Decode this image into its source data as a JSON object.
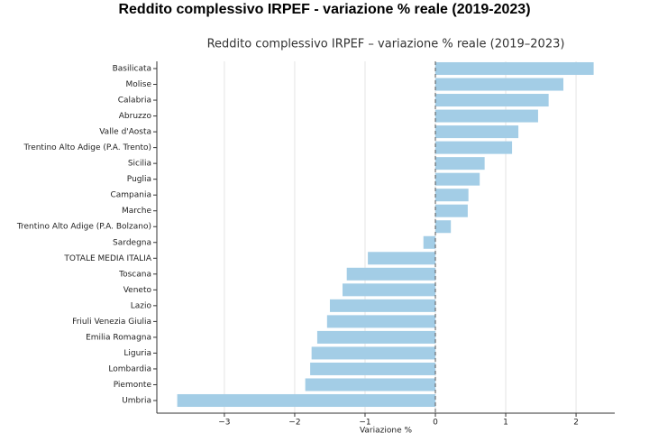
{
  "chart_data": {
    "type": "barh",
    "suptitle": "Reddito complessivo IRPEF - variazione % reale (2019-2023)",
    "title": "Reddito complessivo IRPEF – variazione % reale (2019–2023)",
    "x_label": "Variazione %",
    "categories": [
      "Basilicata",
      "Molise",
      "Calabria",
      "Abruzzo",
      "Valle d'Aosta",
      "Trentino Alto Adige (P.A. Trento)",
      "Sicilia",
      "Puglia",
      "Campania",
      "Marche",
      "Trentino Alto Adige (P.A. Bolzano)",
      "Sardegna",
      "TOTALE MEDIA ITALIA",
      "Toscana",
      "Veneto",
      "Lazio",
      "Friuli Venezia Giulia",
      "Emilia Romagna",
      "Liguria",
      "Lombardia",
      "Piemonte",
      "Umbria"
    ],
    "values": [
      2.25,
      1.82,
      1.61,
      1.46,
      1.18,
      1.09,
      0.7,
      0.63,
      0.47,
      0.46,
      0.22,
      -0.17,
      -0.96,
      -1.26,
      -1.32,
      -1.5,
      -1.54,
      -1.68,
      -1.76,
      -1.78,
      -1.85,
      -3.67
    ],
    "color": "#a3cde6",
    "xlim": [
      -3.96,
      2.55
    ],
    "xticks": [
      {
        "value": -3,
        "label": "−3"
      },
      {
        "value": -2,
        "label": "−2"
      },
      {
        "value": -1,
        "label": "−1"
      },
      0,
      1,
      2
    ],
    "grid": true
  }
}
